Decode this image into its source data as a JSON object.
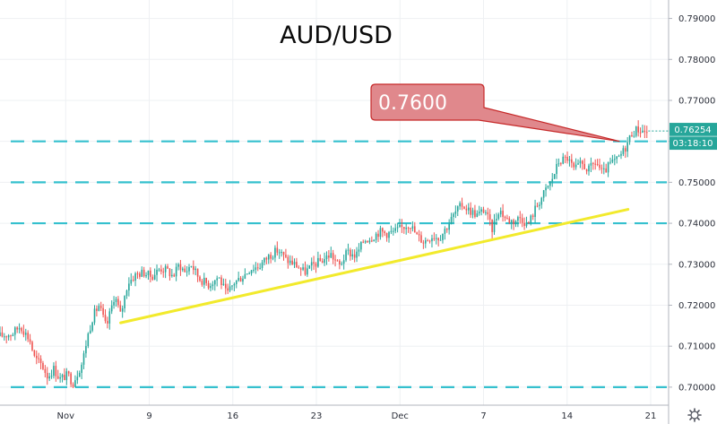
{
  "chart_data": {
    "type": "candlestick",
    "title": "AUD/USD",
    "ylim": [
      0.6956,
      0.7945
    ],
    "y_ticks": [
      "0.79000",
      "0.78000",
      "0.77000",
      "0.76000",
      "0.75000",
      "0.74000",
      "0.73000",
      "0.72000",
      "0.71000",
      "0.70000"
    ],
    "x_ticks": [
      {
        "label": "Nov",
        "day": 2
      },
      {
        "label": "9",
        "day": 9
      },
      {
        "label": "16",
        "day": 16
      },
      {
        "label": "23",
        "day": 23
      },
      {
        "label": "Dec",
        "day": 30
      },
      {
        "label": "7",
        "day": 37
      },
      {
        "label": "14",
        "day": 44
      },
      {
        "label": "21",
        "day": 51
      }
    ],
    "xlim": [
      -3.5,
      52.5
    ],
    "horizontal_levels": [
      0.76,
      0.75,
      0.74,
      0.7
    ],
    "trendline": {
      "start": [
        6.6,
        0.7157
      ],
      "end": [
        49.1,
        0.7434
      ]
    },
    "callout": {
      "label": "0.7600",
      "anchor": [
        48.4,
        0.76
      ]
    },
    "last_price": {
      "value": "0.76254",
      "countdown": "03:18:10",
      "numeric": 0.76254
    },
    "ohlc_anchors": [
      [
        -3.5,
        0.7125
      ],
      [
        -2.5,
        0.713
      ],
      [
        -1.8,
        0.715
      ],
      [
        -1.0,
        0.7115
      ],
      [
        -0.6,
        0.707
      ],
      [
        0.0,
        0.7055
      ],
      [
        0.5,
        0.7025
      ],
      [
        1.0,
        0.7045
      ],
      [
        1.5,
        0.702
      ],
      [
        2.2,
        0.703
      ],
      [
        2.6,
        0.701
      ],
      [
        3.4,
        0.706
      ],
      [
        3.8,
        0.712
      ],
      [
        4.3,
        0.7175
      ],
      [
        4.8,
        0.72
      ],
      [
        5.4,
        0.7145
      ],
      [
        6.1,
        0.7225
      ],
      [
        6.6,
        0.7175
      ],
      [
        7.2,
        0.7255
      ],
      [
        7.9,
        0.7275
      ],
      [
        8.5,
        0.728
      ],
      [
        9.2,
        0.727
      ],
      [
        9.9,
        0.729
      ],
      [
        10.5,
        0.7285
      ],
      [
        11.0,
        0.727
      ],
      [
        11.5,
        0.73
      ],
      [
        12.0,
        0.728
      ],
      [
        12.5,
        0.73
      ],
      [
        13.2,
        0.7265
      ],
      [
        14.0,
        0.725
      ],
      [
        14.8,
        0.727
      ],
      [
        15.5,
        0.7225
      ],
      [
        16.1,
        0.7255
      ],
      [
        16.8,
        0.727
      ],
      [
        17.5,
        0.729
      ],
      [
        18.2,
        0.7295
      ],
      [
        19.0,
        0.732
      ],
      [
        19.8,
        0.7335
      ],
      [
        20.5,
        0.731
      ],
      [
        21.2,
        0.73
      ],
      [
        22.0,
        0.728
      ],
      [
        22.8,
        0.73
      ],
      [
        23.5,
        0.731
      ],
      [
        24.2,
        0.7325
      ],
      [
        24.9,
        0.7295
      ],
      [
        25.6,
        0.733
      ],
      [
        26.3,
        0.732
      ],
      [
        27.0,
        0.736
      ],
      [
        27.6,
        0.7365
      ],
      [
        28.3,
        0.738
      ],
      [
        28.9,
        0.7375
      ],
      [
        29.6,
        0.738
      ],
      [
        30.2,
        0.739
      ],
      [
        30.8,
        0.74
      ],
      [
        31.4,
        0.737
      ],
      [
        32.0,
        0.7355
      ],
      [
        32.7,
        0.737
      ],
      [
        33.3,
        0.7365
      ],
      [
        34.0,
        0.7395
      ],
      [
        34.6,
        0.7425
      ],
      [
        35.2,
        0.7445
      ],
      [
        35.9,
        0.743
      ],
      [
        36.5,
        0.742
      ],
      [
        37.1,
        0.7435
      ],
      [
        37.7,
        0.7385
      ],
      [
        38.3,
        0.7435
      ],
      [
        38.9,
        0.741
      ],
      [
        39.5,
        0.7405
      ],
      [
        40.1,
        0.7415
      ],
      [
        40.7,
        0.7395
      ],
      [
        41.4,
        0.744
      ],
      [
        42.0,
        0.747
      ],
      [
        42.7,
        0.7505
      ],
      [
        43.3,
        0.755
      ],
      [
        44.0,
        0.756
      ],
      [
        44.6,
        0.753
      ],
      [
        45.2,
        0.7545
      ],
      [
        45.8,
        0.753
      ],
      [
        46.4,
        0.755
      ],
      [
        47.0,
        0.752
      ],
      [
        47.6,
        0.7545
      ],
      [
        48.2,
        0.7555
      ],
      [
        48.8,
        0.758
      ],
      [
        49.4,
        0.762
      ],
      [
        49.9,
        0.763
      ],
      [
        50.4,
        0.7625
      ],
      [
        50.8,
        0.7622
      ]
    ]
  }
}
